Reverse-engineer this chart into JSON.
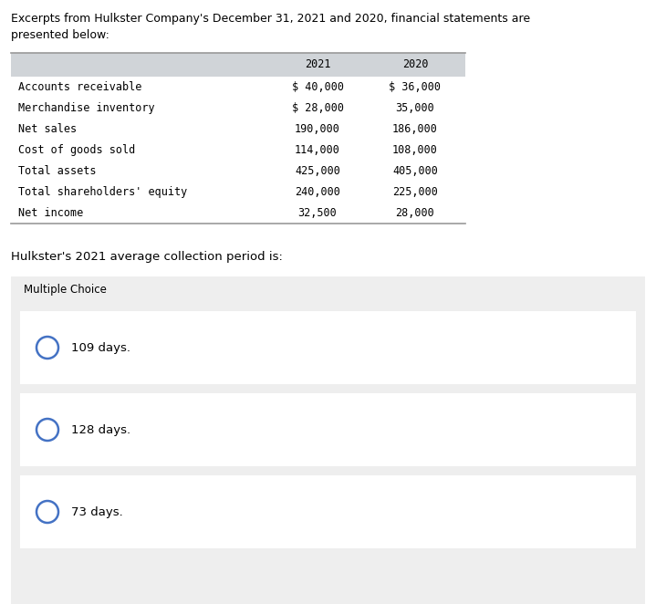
{
  "title_line1": "Excerpts from Hulkster Company's December 31, 2021 and 2020, financial statements are",
  "title_line2": "presented below:",
  "table_rows": [
    {
      "label": "Accounts receivable",
      "val2021": "$ 40,000",
      "val2020": "$ 36,000"
    },
    {
      "label": "Merchandise inventory",
      "val2021": "$ 28,000",
      "val2020": "35,000"
    },
    {
      "label": "Net sales",
      "val2021": "190,000",
      "val2020": "186,000"
    },
    {
      "label": "Cost of goods sold",
      "val2021": "114,000",
      "val2020": "108,000"
    },
    {
      "label": "Total assets",
      "val2021": "425,000",
      "val2020": "405,000"
    },
    {
      "label": "Total shareholders' equity",
      "val2021": "240,000",
      "val2020": "225,000"
    },
    {
      "label": "Net income",
      "val2021": "32,500",
      "val2020": "28,000"
    }
  ],
  "col_header_2021": "2021",
  "col_header_2020": "2020",
  "question": "Hulkster's 2021 average collection period is:",
  "mc_label": "Multiple Choice",
  "choices": [
    "109 days.",
    "128 days.",
    "73 days."
  ],
  "bg_color": "#ffffff",
  "table_header_bg": "#d0d4d8",
  "table_row_bg": "#ffffff",
  "mc_section_bg": "#eeeeee",
  "choice_bg": "#ffffff",
  "circle_color": "#4472c4",
  "text_color": "#000000",
  "mono_font": "DejaVu Sans Mono",
  "sans_font": "DejaVu Sans",
  "table_font_size": 8.5,
  "title_font_size": 9.0,
  "question_font_size": 9.5,
  "mc_font_size": 8.5,
  "choice_font_size": 9.5
}
